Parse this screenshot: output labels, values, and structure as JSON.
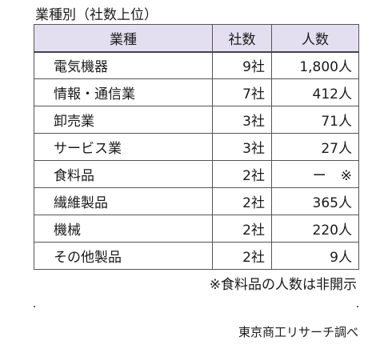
{
  "caption": "業種別（社数上位）",
  "table": {
    "headers": [
      "業種",
      "社数",
      "人数"
    ],
    "rows": [
      {
        "industry": "電気機器",
        "companies": "9社",
        "people": "1,800人",
        "mark": ""
      },
      {
        "industry": "情報・通信業",
        "companies": "7社",
        "people": "412人",
        "mark": ""
      },
      {
        "industry": "卸売業",
        "companies": "3社",
        "people": "71人",
        "mark": ""
      },
      {
        "industry": "サービス業",
        "companies": "3社",
        "people": "27人",
        "mark": ""
      },
      {
        "industry": "食料品",
        "companies": "2社",
        "people": "ー",
        "mark": "※"
      },
      {
        "industry": "繊維製品",
        "companies": "2社",
        "people": "365人",
        "mark": ""
      },
      {
        "industry": "機械",
        "companies": "2社",
        "people": "220人",
        "mark": ""
      },
      {
        "industry": "その他製品",
        "companies": "2社",
        "people": "9人",
        "mark": ""
      }
    ]
  },
  "note": "※食料品の人数は非開示",
  "source": "東京商工リサーチ調べ",
  "colors": {
    "header_background": "#e4dff0",
    "border": "#555555"
  }
}
